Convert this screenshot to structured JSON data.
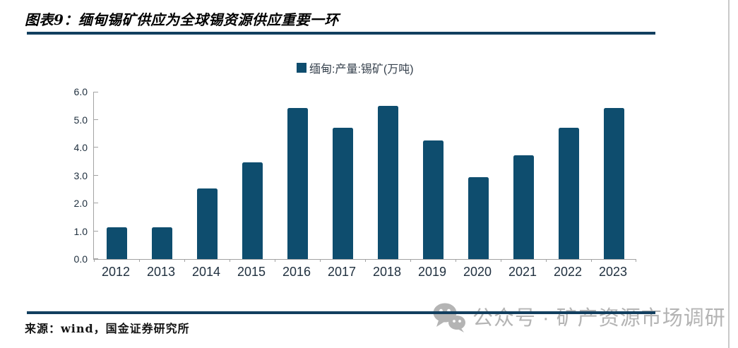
{
  "header": {
    "title": "图表9：缅甸锡矿供应为全球锡资源供应重要一环"
  },
  "chart_data": {
    "type": "bar",
    "title": "图表9：缅甸锡矿供应为全球锡资源供应重要一环",
    "legend_label": "缅甸:产量:锡矿(万吨)",
    "legend_position": "top-center",
    "categories": [
      "2012",
      "2013",
      "2014",
      "2015",
      "2016",
      "2017",
      "2018",
      "2019",
      "2020",
      "2021",
      "2022",
      "2023"
    ],
    "values": [
      1.15,
      1.15,
      2.53,
      3.46,
      5.43,
      4.72,
      5.5,
      4.25,
      2.93,
      3.72,
      4.72,
      5.43
    ],
    "xlabel": "",
    "ylabel": "",
    "ylim": [
      0,
      6
    ],
    "ytick_step": 1.0,
    "ytick_labels_top_to_bottom": [
      "6.0",
      "5.0",
      "4.0",
      "3.0",
      "2.0",
      "1.0",
      "0.0"
    ],
    "grid": false
  },
  "footer": {
    "source": "来源：wind，国金证券研究所",
    "watermark_text": "公众号 · 矿产资源市场调研",
    "watermark_icon": "wechat-icon"
  },
  "colors": {
    "bar": "#0E4D6E",
    "rule": "#123F5F",
    "axis": "#A3A3A3",
    "tick_label": "#20303F",
    "watermark": "#B4B4B4",
    "page_border": "#C9C9C9"
  }
}
